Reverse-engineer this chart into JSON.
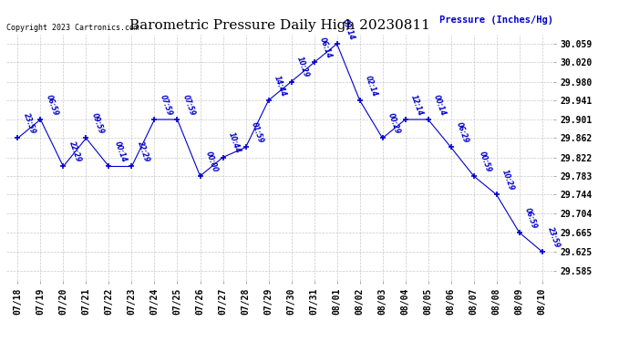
{
  "title": "Barometric Pressure Daily High 20230811",
  "ylabel": "Pressure (Inches/Hg)",
  "copyright": "Copyright 2023 Cartronics.com",
  "background_color": "#ffffff",
  "line_color": "#0000cc",
  "text_color": "#0000cc",
  "grid_color": "#bbbbbb",
  "title_color": "#000000",
  "points": [
    {
      "date": "07/18",
      "time": "23:59",
      "value": 29.862
    },
    {
      "date": "07/19",
      "time": "06:59",
      "value": 29.901
    },
    {
      "date": "07/20",
      "time": "22:29",
      "value": 29.803
    },
    {
      "date": "07/21",
      "time": "09:59",
      "value": 29.862
    },
    {
      "date": "07/22",
      "time": "00:14",
      "value": 29.803
    },
    {
      "date": "07/23",
      "time": "22:29",
      "value": 29.803
    },
    {
      "date": "07/24",
      "time": "07:59",
      "value": 29.901
    },
    {
      "date": "07/25",
      "time": "07:59",
      "value": 29.901
    },
    {
      "date": "07/26",
      "time": "00:00",
      "value": 29.783
    },
    {
      "date": "07/27",
      "time": "10:44",
      "value": 29.822
    },
    {
      "date": "07/28",
      "time": "01:59",
      "value": 29.843
    },
    {
      "date": "07/29",
      "time": "14:44",
      "value": 29.941
    },
    {
      "date": "07/30",
      "time": "10:29",
      "value": 29.98
    },
    {
      "date": "07/31",
      "time": "06:14",
      "value": 30.02
    },
    {
      "date": "08/01",
      "time": "09:14",
      "value": 30.059
    },
    {
      "date": "08/02",
      "time": "02:14",
      "value": 29.941
    },
    {
      "date": "08/03",
      "time": "00:29",
      "value": 29.862
    },
    {
      "date": "08/04",
      "time": "12:14",
      "value": 29.901
    },
    {
      "date": "08/05",
      "time": "00:14",
      "value": 29.901
    },
    {
      "date": "08/06",
      "time": "06:29",
      "value": 29.843
    },
    {
      "date": "08/07",
      "time": "00:59",
      "value": 29.783
    },
    {
      "date": "08/08",
      "time": "10:29",
      "value": 29.744
    },
    {
      "date": "08/09",
      "time": "06:59",
      "value": 29.665
    },
    {
      "date": "08/10",
      "time": "23:59",
      "value": 29.625
    }
  ],
  "ylim_min": 29.565,
  "ylim_max": 30.079,
  "yticks": [
    29.585,
    29.625,
    29.665,
    29.704,
    29.744,
    29.783,
    29.822,
    29.862,
    29.901,
    29.941,
    29.98,
    30.02,
    30.059
  ],
  "title_fontsize": 11,
  "copyright_fontsize": 6,
  "ylabel_fontsize": 7.5,
  "tick_fontsize": 7,
  "point_fontsize": 5.5
}
